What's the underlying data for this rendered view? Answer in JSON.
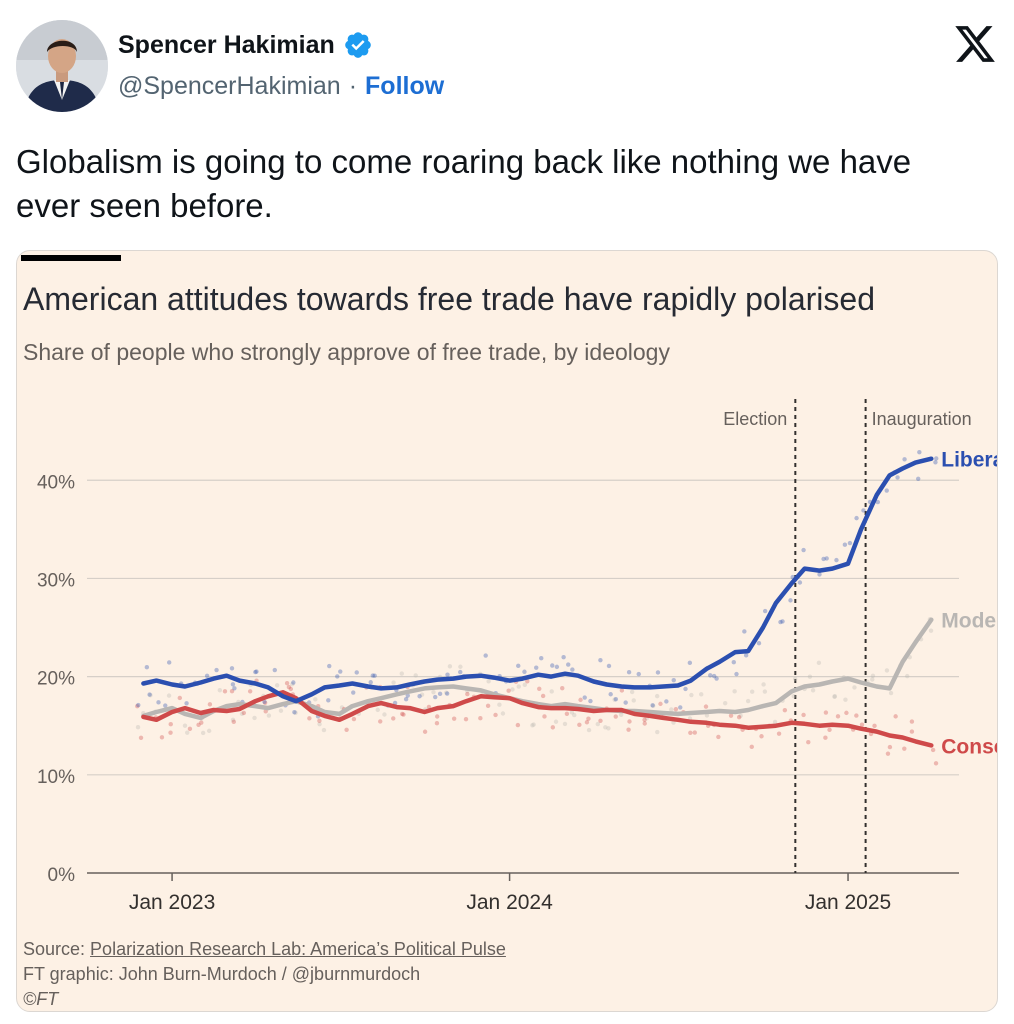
{
  "tweet": {
    "display_name": "Spencer Hakimian",
    "handle": "@SpencerHakimian",
    "separator": "·",
    "follow_label": "Follow",
    "text": "Globalism is going to come roaring back like nothing we have ever seen before."
  },
  "icons": {
    "verified": "verified-badge-icon",
    "platform": "x-logo-icon"
  },
  "colors": {
    "liberal": "#2b4fb0",
    "moderate": "#b9b6b3",
    "conservative": "#cf4a4a",
    "card_bg": "#fdf1e5",
    "follow": "#1d6ed3"
  },
  "chart_card": {
    "source_prefix": "Source: ",
    "source_link": "Polarization Research Lab: America’s Political Pulse",
    "credit": "FT graphic: John Burn-Murdoch / @jburnmurdoch",
    "copyright": "©FT"
  },
  "chart_data": {
    "type": "line",
    "title": "American attitudes towards free trade have rapidly polarised",
    "subtitle": "Share of people who strongly approve of free trade, by ideology",
    "xlabel": "",
    "ylabel": "",
    "x_ticks": [
      "Jan 2023",
      "Jan 2024",
      "Jan 2025"
    ],
    "x_tick_values": [
      "2023-01",
      "2024-01",
      "2025-01"
    ],
    "xlim": [
      "2022-10",
      "2025-05"
    ],
    "y_ticks": [
      "0%",
      "10%",
      "20%",
      "30%",
      "40%"
    ],
    "y_tick_values": [
      0,
      10,
      20,
      30,
      40
    ],
    "ylim": [
      0,
      44
    ],
    "grid": true,
    "legend": "end-of-line labels",
    "annotations": [
      {
        "label": "Election",
        "x": "2024-11-05"
      },
      {
        "label": "Inauguration",
        "x": "2025-01-20"
      }
    ],
    "series": [
      {
        "name": "Liberal",
        "x": [
          "2022-12-01",
          "2022-12-15",
          "2023-01-01",
          "2023-01-15",
          "2023-02-01",
          "2023-02-15",
          "2023-03-01",
          "2023-03-15",
          "2023-04-01",
          "2023-04-15",
          "2023-05-01",
          "2023-05-15",
          "2023-06-01",
          "2023-06-15",
          "2023-07-01",
          "2023-07-15",
          "2023-08-01",
          "2023-08-15",
          "2023-09-01",
          "2023-09-15",
          "2023-10-01",
          "2023-10-15",
          "2023-11-01",
          "2023-11-15",
          "2023-12-01",
          "2023-12-15",
          "2024-01-01",
          "2024-01-15",
          "2024-02-01",
          "2024-02-15",
          "2024-03-01",
          "2024-03-15",
          "2024-04-01",
          "2024-04-15",
          "2024-05-01",
          "2024-05-15",
          "2024-06-01",
          "2024-06-15",
          "2024-07-01",
          "2024-07-15",
          "2024-08-01",
          "2024-08-15",
          "2024-09-01",
          "2024-09-15",
          "2024-10-01",
          "2024-10-15",
          "2024-11-01",
          "2024-11-15",
          "2024-12-01",
          "2024-12-15",
          "2025-01-01",
          "2025-01-15",
          "2025-02-01",
          "2025-02-15",
          "2025-03-01",
          "2025-03-15",
          "2025-04-01"
        ],
        "values": [
          19.3,
          19.6,
          19.2,
          19.0,
          19.4,
          19.8,
          20.1,
          19.6,
          19.3,
          18.9,
          18.0,
          17.5,
          18.2,
          18.9,
          19.1,
          19.3,
          19.0,
          18.8,
          18.9,
          19.2,
          19.5,
          19.7,
          19.8,
          20.0,
          20.1,
          19.9,
          19.6,
          19.8,
          20.2,
          20.0,
          20.3,
          20.1,
          19.5,
          19.2,
          19.0,
          18.9,
          18.9,
          19.0,
          19.1,
          19.6,
          20.8,
          21.5,
          22.5,
          22.6,
          25.0,
          27.5,
          29.5,
          31.0,
          30.8,
          31.0,
          31.5,
          35.0,
          38.5,
          40.5,
          41.2,
          41.8,
          42.2
        ]
      },
      {
        "name": "Moderate",
        "x": [
          "2022-12-01",
          "2022-12-15",
          "2023-01-01",
          "2023-01-15",
          "2023-02-01",
          "2023-02-15",
          "2023-03-01",
          "2023-03-15",
          "2023-04-01",
          "2023-04-15",
          "2023-05-01",
          "2023-05-15",
          "2023-06-01",
          "2023-06-15",
          "2023-07-01",
          "2023-07-15",
          "2023-08-01",
          "2023-08-15",
          "2023-09-01",
          "2023-09-15",
          "2023-10-01",
          "2023-10-15",
          "2023-11-01",
          "2023-11-15",
          "2023-12-01",
          "2023-12-15",
          "2024-01-01",
          "2024-01-15",
          "2024-02-01",
          "2024-02-15",
          "2024-03-01",
          "2024-03-15",
          "2024-04-01",
          "2024-04-15",
          "2024-05-01",
          "2024-05-15",
          "2024-06-01",
          "2024-06-15",
          "2024-07-01",
          "2024-07-15",
          "2024-08-01",
          "2024-08-15",
          "2024-09-01",
          "2024-09-15",
          "2024-10-01",
          "2024-10-15",
          "2024-11-01",
          "2024-11-15",
          "2024-12-01",
          "2024-12-15",
          "2025-01-01",
          "2025-01-15",
          "2025-02-01",
          "2025-02-15",
          "2025-03-01",
          "2025-03-15",
          "2025-04-01"
        ],
        "values": [
          16.0,
          16.4,
          16.8,
          16.2,
          15.8,
          16.5,
          17.0,
          17.2,
          17.0,
          16.8,
          17.2,
          17.5,
          17.0,
          16.4,
          16.2,
          17.0,
          17.5,
          17.8,
          18.2,
          18.5,
          18.8,
          18.9,
          19.0,
          18.8,
          18.6,
          18.2,
          17.8,
          17.5,
          17.2,
          17.0,
          17.2,
          17.0,
          16.8,
          16.6,
          16.5,
          16.5,
          16.4,
          16.3,
          16.2,
          16.3,
          16.4,
          16.5,
          16.4,
          16.6,
          17.0,
          17.3,
          18.5,
          19.0,
          19.2,
          19.5,
          19.8,
          19.4,
          19.0,
          18.8,
          21.5,
          23.5,
          25.8
        ]
      },
      {
        "name": "Conservative",
        "x": [
          "2022-12-01",
          "2022-12-15",
          "2023-01-01",
          "2023-01-15",
          "2023-02-01",
          "2023-02-15",
          "2023-03-01",
          "2023-03-15",
          "2023-04-01",
          "2023-04-15",
          "2023-05-01",
          "2023-05-15",
          "2023-06-01",
          "2023-06-15",
          "2023-07-01",
          "2023-07-15",
          "2023-08-01",
          "2023-08-15",
          "2023-09-01",
          "2023-09-15",
          "2023-10-01",
          "2023-10-15",
          "2023-11-01",
          "2023-11-15",
          "2023-12-01",
          "2023-12-15",
          "2024-01-01",
          "2024-01-15",
          "2024-02-01",
          "2024-02-15",
          "2024-03-01",
          "2024-03-15",
          "2024-04-01",
          "2024-04-15",
          "2024-05-01",
          "2024-05-15",
          "2024-06-01",
          "2024-06-15",
          "2024-07-01",
          "2024-07-15",
          "2024-08-01",
          "2024-08-15",
          "2024-09-01",
          "2024-09-15",
          "2024-10-01",
          "2024-10-15",
          "2024-11-01",
          "2024-11-15",
          "2024-12-01",
          "2024-12-15",
          "2025-01-01",
          "2025-01-15",
          "2025-02-01",
          "2025-02-15",
          "2025-03-01",
          "2025-03-15",
          "2025-04-01"
        ],
        "values": [
          15.9,
          15.6,
          16.4,
          16.8,
          16.3,
          16.6,
          16.5,
          16.7,
          17.5,
          18.0,
          18.4,
          17.8,
          16.5,
          16.0,
          15.6,
          16.2,
          17.0,
          17.3,
          16.9,
          16.8,
          16.4,
          16.8,
          17.0,
          17.5,
          18.0,
          17.9,
          17.8,
          17.3,
          16.9,
          16.8,
          16.8,
          16.7,
          16.5,
          16.6,
          16.6,
          16.2,
          16.0,
          15.8,
          15.6,
          15.4,
          15.3,
          15.1,
          15.0,
          14.8,
          14.9,
          15.0,
          15.3,
          15.2,
          15.0,
          15.1,
          15.0,
          14.7,
          14.4,
          14.0,
          13.8,
          13.4,
          13.0
        ]
      }
    ]
  }
}
